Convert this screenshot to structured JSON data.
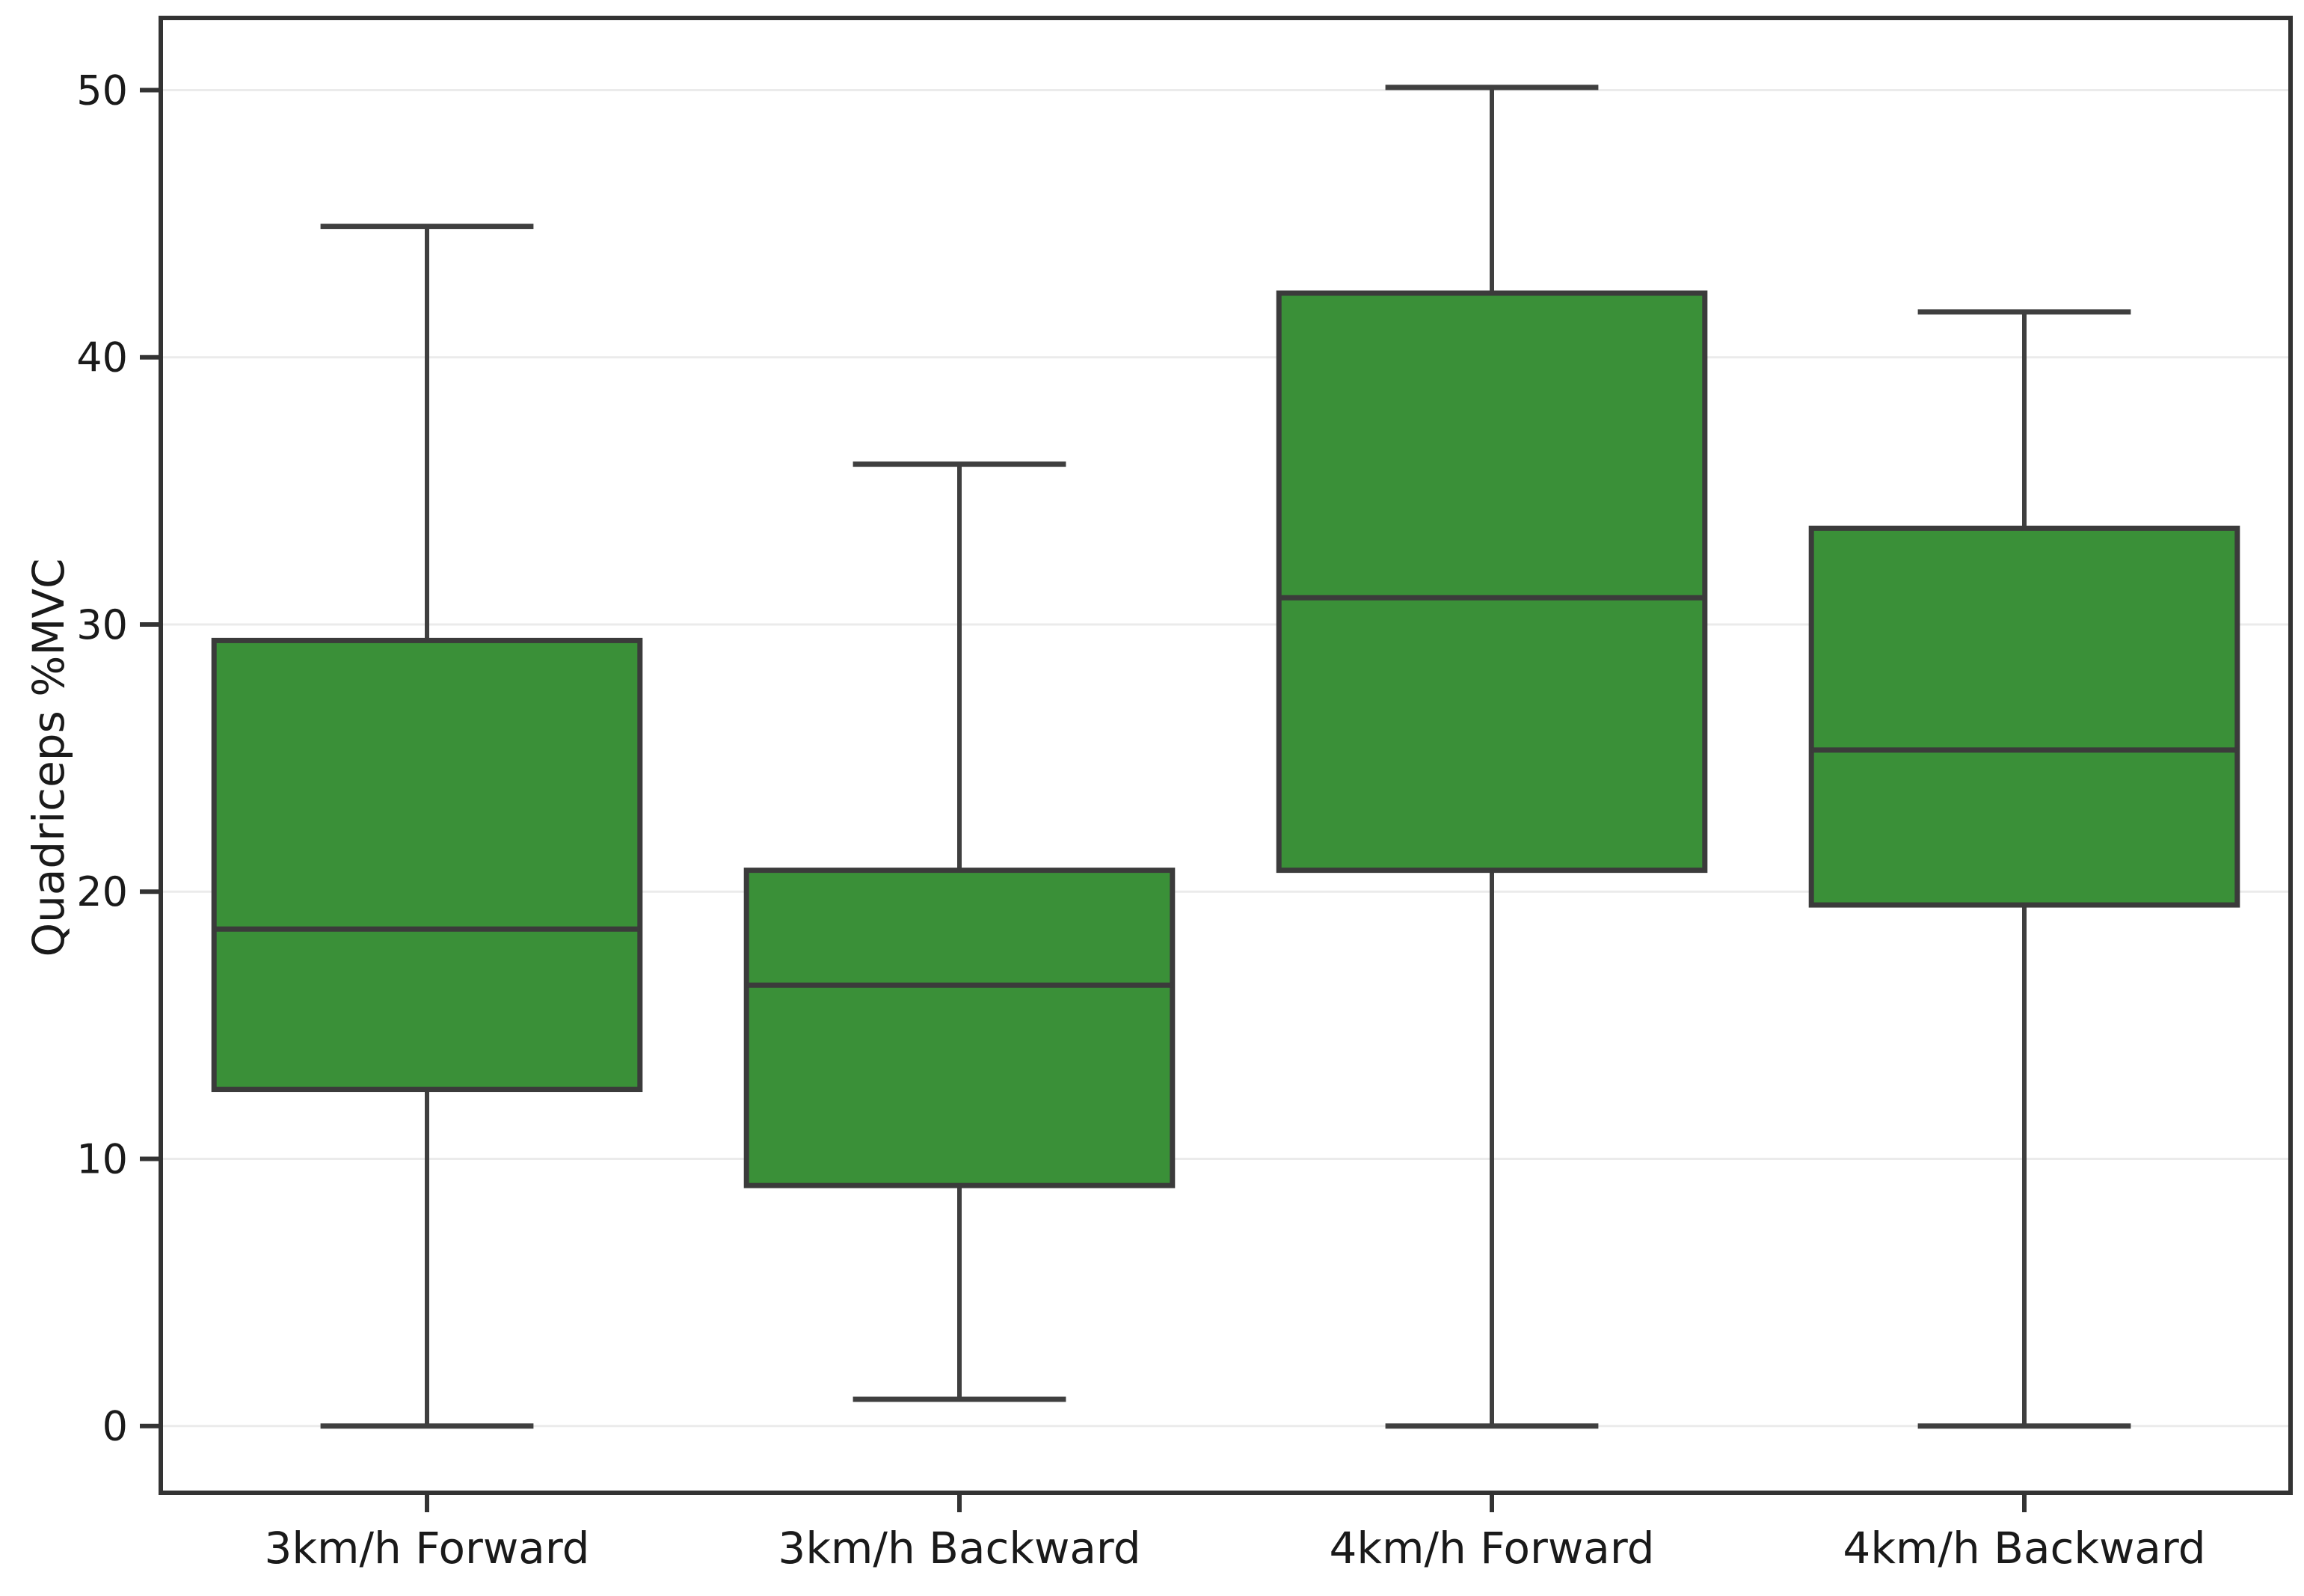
{
  "figure": {
    "background": "#ffffff"
  },
  "chart_data": {
    "type": "boxplot",
    "title": "",
    "xlabel": "",
    "ylabel": "Quadriceps %MVC",
    "categories": [
      "3km/h Forward",
      "3km/h Backward",
      "4km/h Forward",
      "4km/h Backward"
    ],
    "yticks": [
      0,
      10,
      20,
      30,
      40,
      50
    ],
    "ylim": [
      -2.5,
      52.7
    ],
    "grid": "horizontal-light",
    "legend": "none",
    "series": [
      {
        "category": "3km/h Forward",
        "whisker_low": 0.0,
        "q1": 12.6,
        "median": 18.6,
        "q3": 29.4,
        "whisker_high": 44.9
      },
      {
        "category": "3km/h Backward",
        "whisker_low": 1.0,
        "q1": 9.0,
        "median": 16.5,
        "q3": 20.8,
        "whisker_high": 36.0
      },
      {
        "category": "4km/h Forward",
        "whisker_low": 0.0,
        "q1": 20.8,
        "median": 31.0,
        "q3": 42.4,
        "whisker_high": 50.1
      },
      {
        "category": "4km/h Backward",
        "whisker_low": 0.0,
        "q1": 19.5,
        "median": 25.3,
        "q3": 33.6,
        "whisker_high": 41.7
      }
    ],
    "colors": {
      "box_fill": "#3a9038",
      "box_edge": "#3b3b3b",
      "median_line": "#3b3b3b",
      "whisker": "#3f3f3f",
      "grid_line": "#ebebeb",
      "spine": "#333333",
      "text": "#1a1a1a"
    }
  }
}
